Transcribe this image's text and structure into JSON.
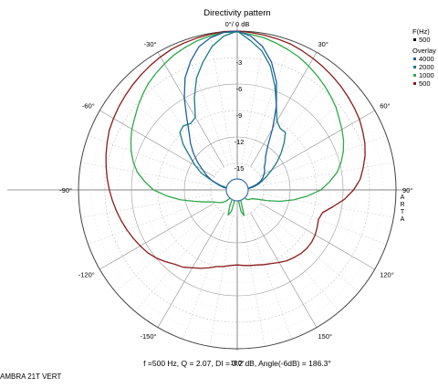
{
  "chart_data": {
    "type": "polar-line",
    "title": "Directivity pattern",
    "top_label": "0°/ 0 dB",
    "angle_labels": [
      {
        "angle": 30,
        "text": "30°"
      },
      {
        "angle": 60,
        "text": "60°"
      },
      {
        "angle": 90,
        "text": "90°"
      },
      {
        "angle": 120,
        "text": "120°"
      },
      {
        "angle": 150,
        "text": "150°"
      },
      {
        "angle": 180,
        "text": "180°"
      },
      {
        "angle": -150,
        "text": "-150°"
      },
      {
        "angle": -120,
        "text": "-120°"
      },
      {
        "angle": -90,
        "text": "-90°"
      },
      {
        "angle": -60,
        "text": "-60°"
      },
      {
        "angle": -30,
        "text": "-30°"
      }
    ],
    "radial_labels": [
      "-3",
      "-6",
      "-9",
      "-12",
      "-15"
    ],
    "radial_range_db": [
      -18,
      0
    ],
    "radial_step_db": 3,
    "angle_step_deg": 10,
    "grid": true,
    "side_label": [
      "A",
      "R",
      "T",
      "A"
    ],
    "legend": {
      "header": "F(Hz)",
      "current": {
        "label": "500",
        "color": "#000000"
      },
      "overlay_title": "Overlay",
      "entries": [
        {
          "label": "4000",
          "color": "#1f5fa0"
        },
        {
          "label": "2000",
          "color": "#1a7a86"
        },
        {
          "label": "1000",
          "color": "#2ea84a"
        },
        {
          "label": "500",
          "color": "#8b1a1a"
        }
      ]
    },
    "series": [
      {
        "name": "4000",
        "color": "#1f5fa0",
        "angles": [
          0,
          5,
          10,
          15,
          20,
          25,
          30,
          35,
          40,
          45,
          50,
          55,
          60,
          65,
          70,
          75,
          80,
          85,
          90,
          100,
          110,
          120,
          130,
          140,
          150,
          160,
          170,
          180,
          -170,
          -160,
          -150,
          -140,
          -130,
          -120,
          -110,
          -100,
          -90,
          -85,
          -80,
          -75,
          -70,
          -65,
          -60,
          -55,
          -50,
          -45,
          -40,
          -35,
          -30,
          -25,
          -20,
          -15,
          -10,
          -5
        ],
        "db": [
          0,
          -0.5,
          -1.5,
          -3,
          -5,
          -7.5,
          -10,
          -12,
          -13,
          -13.5,
          -14,
          -14.2,
          -14.5,
          -14.8,
          -15.2,
          -15.8,
          -16.5,
          -17.2,
          -18,
          -18,
          -18,
          -18,
          -18,
          -18,
          -18,
          -18,
          -18,
          -18,
          -18,
          -18,
          -18,
          -18,
          -18,
          -18,
          -18,
          -18,
          -18,
          -17.3,
          -16.5,
          -15.8,
          -15,
          -14.2,
          -13.5,
          -12.5,
          -11.5,
          -10.5,
          -9.5,
          -8,
          -6,
          -4,
          -2.5,
          -1.2,
          -0.5,
          -0.1
        ]
      },
      {
        "name": "2000",
        "color": "#1a7a86",
        "angles": [
          0,
          5,
          10,
          15,
          20,
          25,
          30,
          35,
          40,
          45,
          50,
          55,
          60,
          65,
          70,
          75,
          80,
          85,
          90,
          100,
          110,
          120,
          130,
          140,
          150,
          160,
          170,
          180,
          -170,
          -160,
          -150,
          -140,
          -130,
          -120,
          -110,
          -100,
          -90,
          -85,
          -80,
          -75,
          -70,
          -65,
          -60,
          -55,
          -50,
          -45,
          -40,
          -35,
          -30,
          -25,
          -20,
          -15,
          -10,
          -5
        ],
        "db": [
          0,
          -1,
          -2,
          -3.5,
          -5.5,
          -7.5,
          -9,
          -9.5,
          -9.5,
          -10.5,
          -11.5,
          -12.5,
          -13.5,
          -14.3,
          -15,
          -15.5,
          -16.2,
          -17,
          -17.5,
          -18,
          -18,
          -18,
          -18,
          -18,
          -18,
          -18,
          -18,
          -18,
          -18,
          -18,
          -18,
          -18,
          -18,
          -18,
          -18,
          -18,
          -18,
          -17.5,
          -17,
          -16,
          -15,
          -13.5,
          -12.5,
          -11.5,
          -10,
          -8.8,
          -8.5,
          -8.8,
          -8.5,
          -6.5,
          -4.5,
          -3,
          -1.5,
          -0.5
        ]
      },
      {
        "name": "1000",
        "color": "#2ea84a",
        "angles": [
          0,
          5,
          10,
          15,
          20,
          25,
          30,
          35,
          40,
          45,
          50,
          55,
          60,
          65,
          70,
          75,
          80,
          85,
          90,
          95,
          100,
          105,
          110,
          115,
          120,
          125,
          130,
          135,
          140,
          145,
          150,
          155,
          160,
          165,
          170,
          175,
          180,
          -175,
          -170,
          -165,
          -160,
          -155,
          -150,
          -145,
          -140,
          -135,
          -130,
          -125,
          -120,
          -115,
          -110,
          -105,
          -100,
          -95,
          -90,
          -85,
          -80,
          -75,
          -70,
          -65,
          -60,
          -55,
          -50,
          -45,
          -40,
          -35,
          -30,
          -25,
          -20,
          -15,
          -10,
          -5
        ],
        "db": [
          -0.1,
          -0.3,
          -0.5,
          -0.8,
          -1.1,
          -1.4,
          -1.8,
          -2.2,
          -2.6,
          -3,
          -3.4,
          -3.9,
          -4.3,
          -4.7,
          -5.2,
          -5.8,
          -6.5,
          -7.5,
          -8.5,
          -10,
          -11.5,
          -13,
          -14.5,
          -15.5,
          -16,
          -16.2,
          -16.3,
          -16.5,
          -17,
          -17.5,
          -18,
          -18,
          -17,
          -15,
          -15.5,
          -17,
          -18,
          -18,
          -17.5,
          -15.5,
          -15,
          -16,
          -17,
          -17.5,
          -16.8,
          -16.2,
          -15.8,
          -15.5,
          -15.2,
          -14.8,
          -14,
          -13,
          -11.5,
          -10,
          -8.5,
          -7.5,
          -6.5,
          -5.8,
          -5.2,
          -4.7,
          -4.2,
          -3.8,
          -3.3,
          -2.8,
          -2.3,
          -1.9,
          -1.5,
          -1.1,
          -0.8,
          -0.5,
          -0.3,
          -0.1
        ]
      },
      {
        "name": "500",
        "color": "#8b1a1a",
        "angles": [
          0,
          5,
          10,
          15,
          20,
          25,
          30,
          35,
          40,
          45,
          50,
          55,
          60,
          65,
          70,
          75,
          80,
          85,
          90,
          95,
          100,
          105,
          110,
          115,
          120,
          125,
          130,
          135,
          140,
          145,
          150,
          155,
          160,
          165,
          170,
          175,
          180,
          -175,
          -170,
          -165,
          -160,
          -155,
          -150,
          -145,
          -140,
          -135,
          -130,
          -125,
          -120,
          -115,
          -110,
          -105,
          -100,
          -95,
          -90,
          -85,
          -80,
          -75,
          -70,
          -65,
          -60,
          -55,
          -50,
          -45,
          -40,
          -35,
          -30,
          -25,
          -20,
          -15,
          -10,
          -5
        ],
        "db": [
          0,
          -0.1,
          -0.2,
          -0.3,
          -0.4,
          -0.6,
          -0.8,
          -1,
          -1.2,
          -1.4,
          -1.6,
          -1.8,
          -2,
          -2.3,
          -2.6,
          -3,
          -3.5,
          -4,
          -4.8,
          -5.8,
          -7,
          -8,
          -8.2,
          -8,
          -7.8,
          -7.7,
          -7.7,
          -7.8,
          -8,
          -8.2,
          -8.5,
          -8.8,
          -9,
          -9.2,
          -9.3,
          -9.4,
          -9.5,
          -9.4,
          -9.2,
          -9,
          -8.6,
          -8.2,
          -7.8,
          -7.3,
          -7,
          -6.5,
          -6,
          -5.6,
          -5.3,
          -5,
          -4.7,
          -4.4,
          -4.1,
          -3.8,
          -3.5,
          -3.2,
          -2.9,
          -2.6,
          -2.3,
          -2,
          -1.8,
          -1.6,
          -1.4,
          -1.2,
          -1,
          -0.8,
          -0.6,
          -0.4,
          -0.3,
          -0.2,
          -0.1,
          0
        ]
      }
    ],
    "caption": "f =500 Hz,  Q =  2.07,  DI =   3.2 dB, Angle(-6dB) = 186.3°"
  },
  "footer": {
    "name": "AMBRA 21T VERT"
  }
}
